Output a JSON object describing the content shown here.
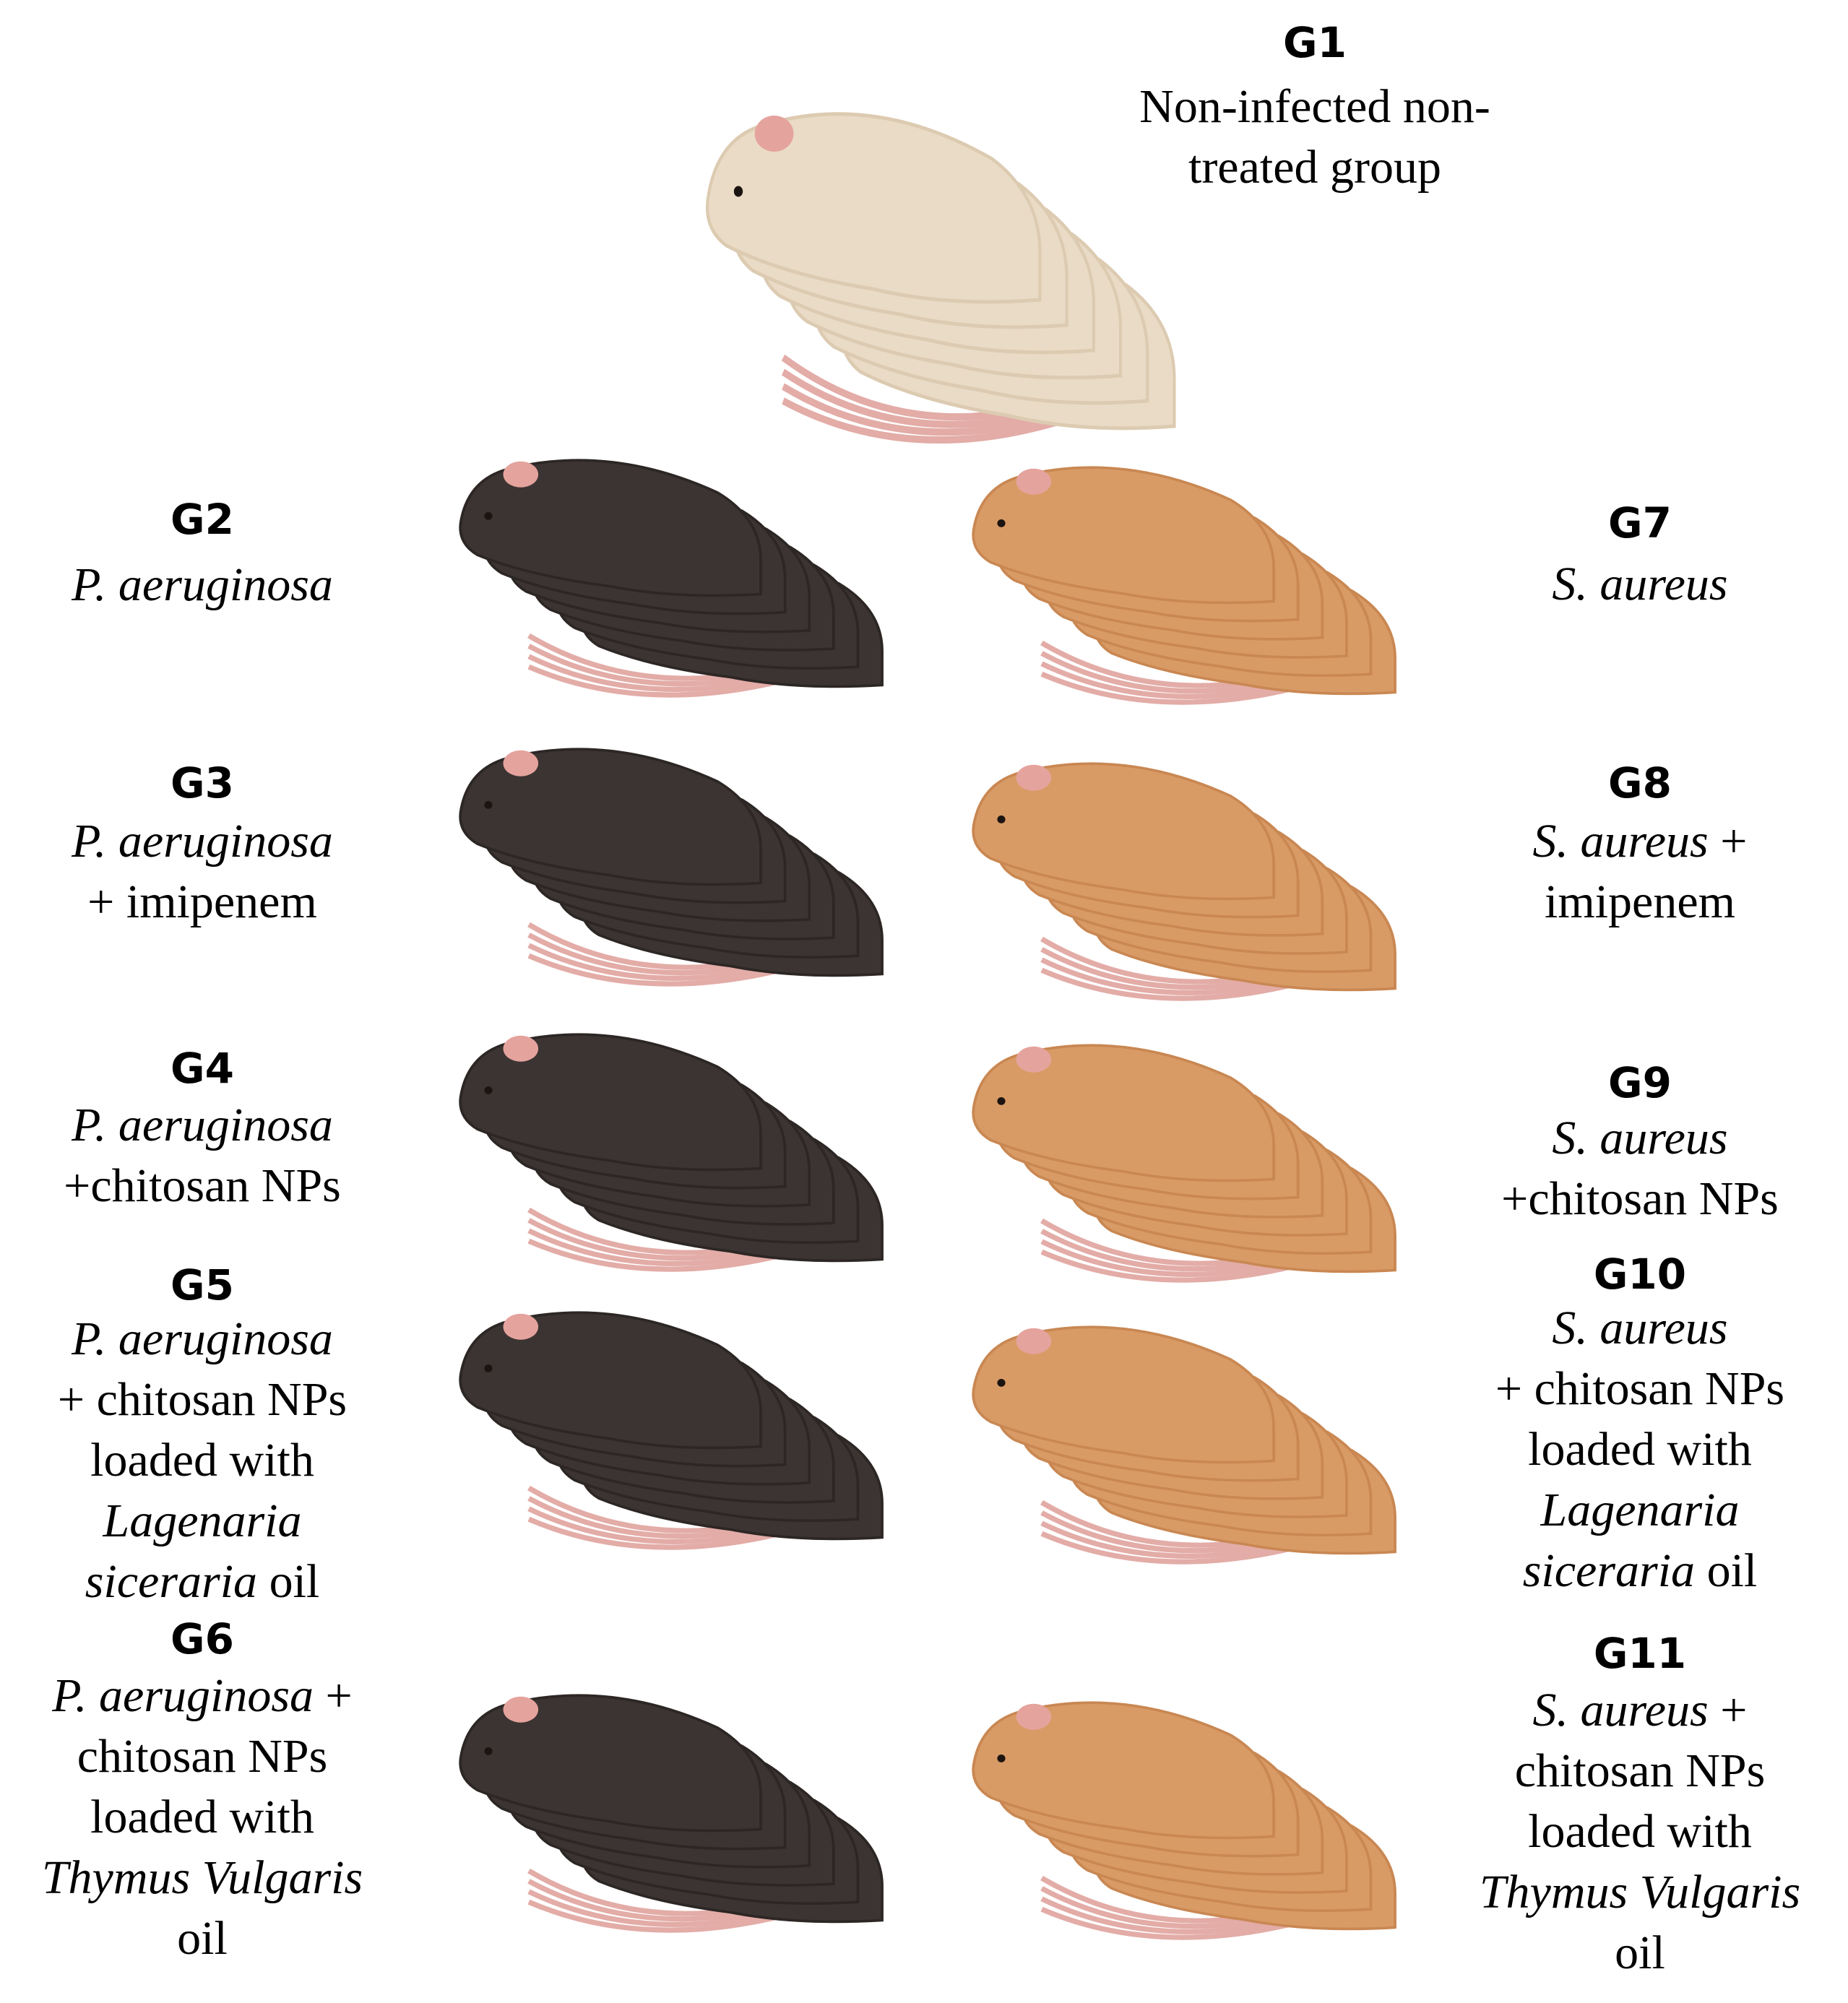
{
  "colors": {
    "control_mouse": "#eadbc6",
    "control_mouse_shade": "#dccbb1",
    "pa_mouse": "#3b3432",
    "pa_mouse_shade": "#2c2624",
    "sa_mouse": "#d99b66",
    "sa_mouse_shade": "#c98752",
    "ear": "#e5a39d",
    "tail": "#e3aca7",
    "eye": "#1c1410"
  },
  "icons": [
    "mouse-group-icon"
  ],
  "groups": {
    "g1": {
      "id": "G1",
      "lines": [
        [
          {
            "t": "Non-infected non-",
            "i": false
          }
        ],
        [
          {
            "t": "treated group",
            "i": false
          }
        ]
      ]
    },
    "g2": {
      "id": "G2",
      "lines": [
        [
          {
            "t": "P. aeruginosa",
            "i": true
          }
        ]
      ]
    },
    "g3": {
      "id": "G3",
      "lines": [
        [
          {
            "t": "P. aeruginosa",
            "i": true
          }
        ],
        [
          {
            "t": "+ imipenem",
            "i": false
          }
        ]
      ]
    },
    "g4": {
      "id": "G4",
      "lines": [
        [
          {
            "t": "P. aeruginosa",
            "i": true
          }
        ],
        [
          {
            "t": "+chitosan NPs",
            "i": false
          }
        ]
      ]
    },
    "g5": {
      "id": "G5",
      "lines": [
        [
          {
            "t": "P. aeruginosa",
            "i": true
          }
        ],
        [
          {
            "t": "+ chitosan NPs",
            "i": false
          }
        ],
        [
          {
            "t": "loaded with",
            "i": false
          }
        ],
        [
          {
            "t": "Lagenaria",
            "i": true
          }
        ],
        [
          {
            "t": "siceraria",
            "i": true
          },
          {
            "t": " oil",
            "i": false
          }
        ]
      ]
    },
    "g6": {
      "id": "G6",
      "lines": [
        [
          {
            "t": "P. aeruginosa",
            "i": true
          },
          {
            "t": " +",
            "i": false
          }
        ],
        [
          {
            "t": "chitosan NPs",
            "i": false
          }
        ],
        [
          {
            "t": "loaded with",
            "i": false
          }
        ],
        [
          {
            "t": "Thymus Vulgaris",
            "i": true
          }
        ],
        [
          {
            "t": "oil",
            "i": false
          }
        ]
      ]
    },
    "g7": {
      "id": "G7",
      "lines": [
        [
          {
            "t": "S. aureus",
            "i": true
          }
        ]
      ]
    },
    "g8": {
      "id": "G8",
      "lines": [
        [
          {
            "t": "S. aureus",
            "i": true
          },
          {
            "t": " +",
            "i": false
          }
        ],
        [
          {
            "t": "imipenem",
            "i": false
          }
        ]
      ]
    },
    "g9": {
      "id": "G9",
      "lines": [
        [
          {
            "t": "S. aureus",
            "i": true
          }
        ],
        [
          {
            "t": "+chitosan NPs",
            "i": false
          }
        ]
      ]
    },
    "g10": {
      "id": "G10",
      "lines": [
        [
          {
            "t": "S. aureus",
            "i": true
          }
        ],
        [
          {
            "t": "+ chitosan NPs",
            "i": false
          }
        ],
        [
          {
            "t": "loaded with",
            "i": false
          }
        ],
        [
          {
            "t": "Lagenaria",
            "i": true
          }
        ],
        [
          {
            "t": "siceraria",
            "i": true
          },
          {
            "t": " oil",
            "i": false
          }
        ]
      ]
    },
    "g11": {
      "id": "G11",
      "lines": [
        [
          {
            "t": "S. aureus",
            "i": true
          },
          {
            "t": " +",
            "i": false
          }
        ],
        [
          {
            "t": "chitosan NPs",
            "i": false
          }
        ],
        [
          {
            "t": "loaded with",
            "i": false
          }
        ],
        [
          {
            "t": "Thymus Vulgaris",
            "i": true
          }
        ],
        [
          {
            "t": "oil",
            "i": false
          }
        ]
      ]
    }
  },
  "mouse_groups": [
    {
      "variant": "control"
    },
    {
      "variant": "pa"
    },
    {
      "variant": "pa"
    },
    {
      "variant": "pa"
    },
    {
      "variant": "pa"
    },
    {
      "variant": "pa"
    },
    {
      "variant": "sa"
    },
    {
      "variant": "sa"
    },
    {
      "variant": "sa"
    },
    {
      "variant": "sa"
    },
    {
      "variant": "sa"
    }
  ]
}
